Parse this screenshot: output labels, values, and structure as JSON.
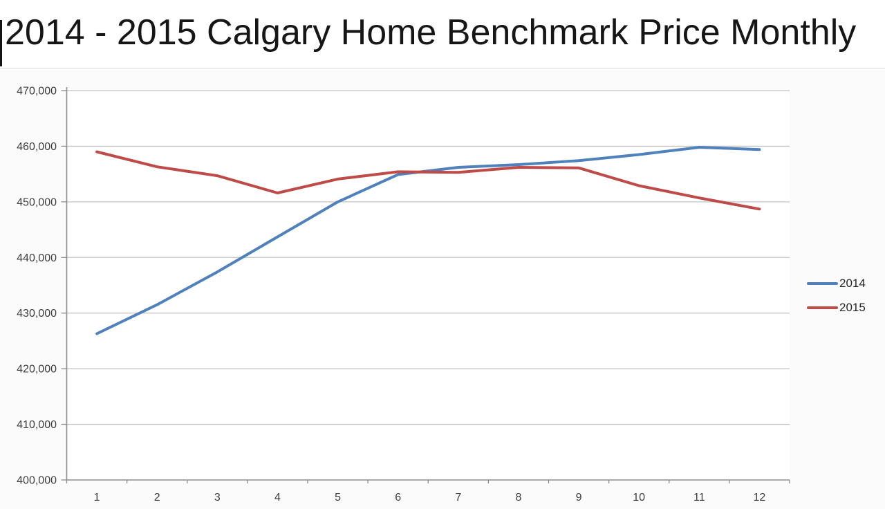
{
  "chart_data": {
    "type": "line",
    "title": "2014 - 2015 Calgary Home Benchmark Price Monthly",
    "categories": [
      "1",
      "2",
      "3",
      "4",
      "5",
      "6",
      "7",
      "8",
      "9",
      "10",
      "11",
      "12"
    ],
    "series": [
      {
        "name": "2014",
        "color": "#4f81bd",
        "values": [
          426300,
          431500,
          437400,
          443700,
          450000,
          454900,
          456200,
          456700,
          457400,
          458500,
          459800,
          459400
        ]
      },
      {
        "name": "2015",
        "color": "#be4b48",
        "values": [
          459000,
          456300,
          454700,
          451600,
          454100,
          455400,
          455300,
          456200,
          456100,
          452900,
          450700,
          448700
        ]
      }
    ],
    "ylim": [
      400000,
      470000
    ],
    "ytick_step": 10000,
    "ytick_labels": [
      "400,000",
      "410,000",
      "420,000",
      "430,000",
      "440,000",
      "450,000",
      "460,000",
      "470,000"
    ],
    "xlabel": "",
    "ylabel": "",
    "grid": true,
    "legend_position": "right",
    "colors": {
      "gridline": "#c3c3c3",
      "axis": "#8c8c8c",
      "tick_text": "#3d3d3d"
    }
  }
}
